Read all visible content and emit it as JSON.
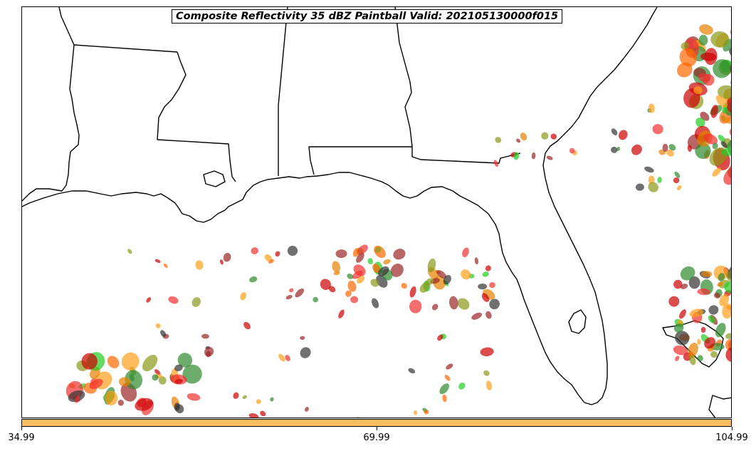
{
  "title": "Composite Reflectivity 35 dBZ Paintball Valid: 202105130000f015",
  "colorbar": {
    "color": "#ffbf60",
    "tick_labels": [
      "34.99",
      "69.99",
      "104.99"
    ]
  },
  "member_colors": [
    "#f03030",
    "#e68000",
    "#ff9f1a",
    "#9b2525",
    "#2d8a2d",
    "#22cc22",
    "#8a9a1a",
    "#333333",
    "#cc0000",
    "#ff6600"
  ]
}
